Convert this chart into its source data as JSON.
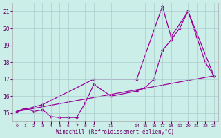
{
  "background_color": "#cceee8",
  "grid_color": "#aacccc",
  "line_color": "#990099",
  "marker_color": "#990099",
  "xlabel": "Windchill (Refroidissement éolien,°C)",
  "ylabel_ticks": [
    15,
    16,
    17,
    18,
    19,
    20,
    21
  ],
  "xlabel_ticks": [
    0,
    1,
    2,
    3,
    4,
    5,
    6,
    7,
    8,
    9,
    11,
    14,
    15,
    16,
    17,
    18,
    19,
    20,
    21,
    22,
    23
  ],
  "ylim": [
    14.5,
    21.5
  ],
  "xlim": [
    -0.5,
    23.5
  ],
  "series1_x": [
    0,
    1,
    2,
    3,
    4,
    5,
    6,
    7,
    8,
    9,
    11,
    14,
    15,
    16,
    17,
    18,
    19,
    20,
    21,
    22,
    23
  ],
  "series1_y": [
    15.1,
    15.3,
    15.1,
    15.2,
    14.8,
    14.75,
    14.75,
    14.75,
    15.6,
    16.7,
    16.0,
    16.3,
    16.5,
    17.0,
    18.7,
    19.3,
    20.0,
    21.0,
    19.5,
    18.0,
    17.2
  ],
  "series2_x": [
    0,
    3,
    9,
    14,
    17,
    18,
    20,
    23
  ],
  "series2_y": [
    15.1,
    15.5,
    17.0,
    17.0,
    21.3,
    19.5,
    21.0,
    17.2
  ],
  "series3_x": [
    0,
    23
  ],
  "series3_y": [
    15.1,
    17.2
  ]
}
